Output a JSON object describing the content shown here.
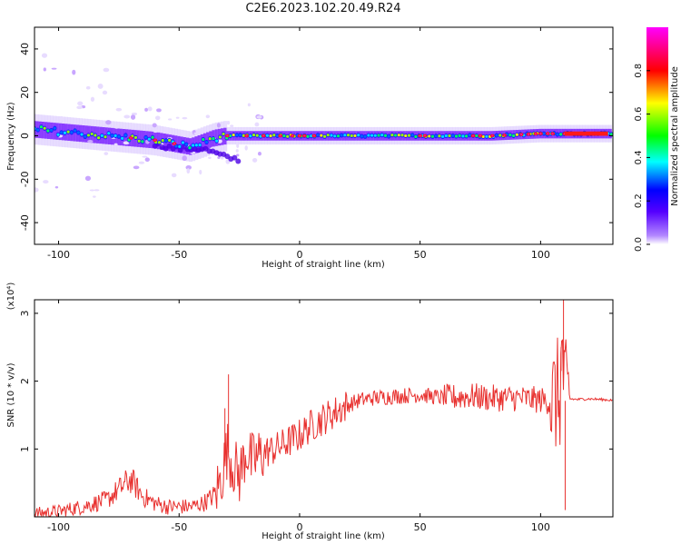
{
  "figure": {
    "title": "C2E6.2023.102.20.49.R24"
  },
  "chart_data": [
    {
      "type": "heatmap",
      "xlabel": "Height of straight line (km)",
      "ylabel": "Frequency (Hz)",
      "xlim": [
        -110,
        130
      ],
      "ylim": [
        -50,
        50
      ],
      "xticks": [
        -100,
        -50,
        0,
        50,
        100
      ],
      "yticks": [
        -40,
        -20,
        0,
        20,
        40
      ],
      "colorbar": {
        "label": "Normalized spectral amplitude",
        "range": [
          0.0,
          1.0
        ],
        "ticks": [
          "0.0",
          "0.2",
          "0.4",
          "0.6",
          "0.8"
        ],
        "colormap": [
          "#ff00ff",
          "#ff0000",
          "#ffff00",
          "#00ff00",
          "#00ffff",
          "#0000ff",
          "#8800ff",
          "#ffffff"
        ]
      },
      "ridge": {
        "x": [
          -110,
          -100,
          -90,
          -80,
          -70,
          -60,
          -50,
          -45,
          -40,
          -35,
          -30,
          -25,
          -20,
          -10,
          0,
          10,
          20,
          40,
          60,
          80,
          100,
          110,
          120,
          130
        ],
        "y": [
          3,
          2,
          1,
          0,
          -1,
          -2,
          -4,
          -5,
          -3,
          -1,
          0,
          0,
          0,
          0,
          0,
          0,
          0,
          0,
          0,
          0,
          1,
          1,
          1,
          1
        ]
      },
      "branch": {
        "x": [
          -60,
          -50,
          -40,
          -35,
          -30,
          -25
        ],
        "y": [
          -4,
          -6,
          -6,
          -8,
          -10,
          -11
        ]
      }
    },
    {
      "type": "line",
      "xlabel": "Height of straight line (km)",
      "ylabel": "SNR (10 * v/v)",
      "yscale_label": "(x10⁴)",
      "xlim": [
        -110,
        130
      ],
      "ylim": [
        0,
        3.2
      ],
      "xticks": [
        -100,
        -50,
        0,
        50,
        100
      ],
      "yticks": [
        1,
        2,
        3
      ],
      "color": "#e8312f",
      "x": [
        -110,
        -100,
        -90,
        -80,
        -75,
        -72,
        -70,
        -65,
        -60,
        -55,
        -50,
        -45,
        -40,
        -36,
        -33,
        -30,
        -28,
        -25,
        -22,
        -20,
        -15,
        -10,
        -5,
        0,
        5,
        10,
        15,
        20,
        25,
        30,
        40,
        50,
        60,
        70,
        80,
        90,
        100,
        105,
        108,
        109,
        110,
        111,
        112,
        115,
        120,
        125,
        130
      ],
      "y": [
        0.05,
        0.08,
        0.15,
        0.25,
        0.4,
        0.5,
        0.55,
        0.3,
        0.2,
        0.15,
        0.15,
        0.15,
        0.2,
        0.3,
        0.5,
        1.0,
        0.8,
        0.6,
        1.0,
        0.8,
        0.95,
        1.0,
        1.1,
        1.2,
        1.35,
        1.45,
        1.55,
        1.65,
        1.72,
        1.75,
        1.78,
        1.8,
        1.75,
        1.78,
        1.75,
        1.75,
        1.72,
        1.7,
        1.8,
        2.5,
        1.7,
        1.75,
        1.74,
        1.73,
        1.74,
        1.73,
        1.72
      ]
    }
  ]
}
